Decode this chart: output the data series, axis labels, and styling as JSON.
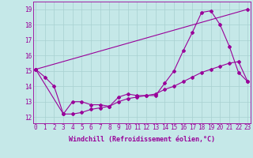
{
  "xlabel": "Windchill (Refroidissement éolien,°C)",
  "background_color": "#c5e8e8",
  "grid_color": "#a8d0d0",
  "line_color": "#990099",
  "x_ticks": [
    0,
    1,
    2,
    3,
    4,
    5,
    6,
    7,
    8,
    9,
    10,
    11,
    12,
    13,
    14,
    15,
    16,
    17,
    18,
    19,
    20,
    21,
    22,
    23
  ],
  "ylim": [
    11.6,
    19.5
  ],
  "xlim": [
    -0.3,
    23.3
  ],
  "y_ticks": [
    12,
    13,
    14,
    15,
    16,
    17,
    18,
    19
  ],
  "line1_x": [
    0,
    1,
    2,
    3,
    4,
    5,
    6,
    7,
    8,
    9,
    10,
    11,
    12,
    13,
    14,
    15,
    16,
    17,
    18,
    19,
    20,
    21,
    22,
    23
  ],
  "line1_y": [
    15.1,
    14.6,
    14.0,
    12.2,
    13.0,
    13.0,
    12.8,
    12.8,
    12.7,
    13.3,
    13.5,
    13.4,
    13.4,
    13.4,
    14.2,
    15.0,
    16.3,
    17.5,
    18.8,
    18.9,
    18.0,
    16.6,
    14.9,
    14.3
  ],
  "line2_x": [
    0,
    23
  ],
  "line2_y": [
    15.1,
    19.0
  ],
  "line3_x": [
    0,
    3,
    4,
    5,
    6,
    7,
    8,
    9,
    10,
    11,
    12,
    13,
    14,
    15,
    16,
    17,
    18,
    19,
    20,
    21,
    22,
    23
  ],
  "line3_y": [
    15.1,
    12.2,
    12.2,
    12.3,
    12.5,
    12.6,
    12.7,
    13.0,
    13.2,
    13.3,
    13.4,
    13.5,
    13.8,
    14.0,
    14.3,
    14.6,
    14.9,
    15.1,
    15.3,
    15.5,
    15.6,
    14.3
  ],
  "tick_fontsize": 5.5,
  "label_fontsize": 6.0
}
